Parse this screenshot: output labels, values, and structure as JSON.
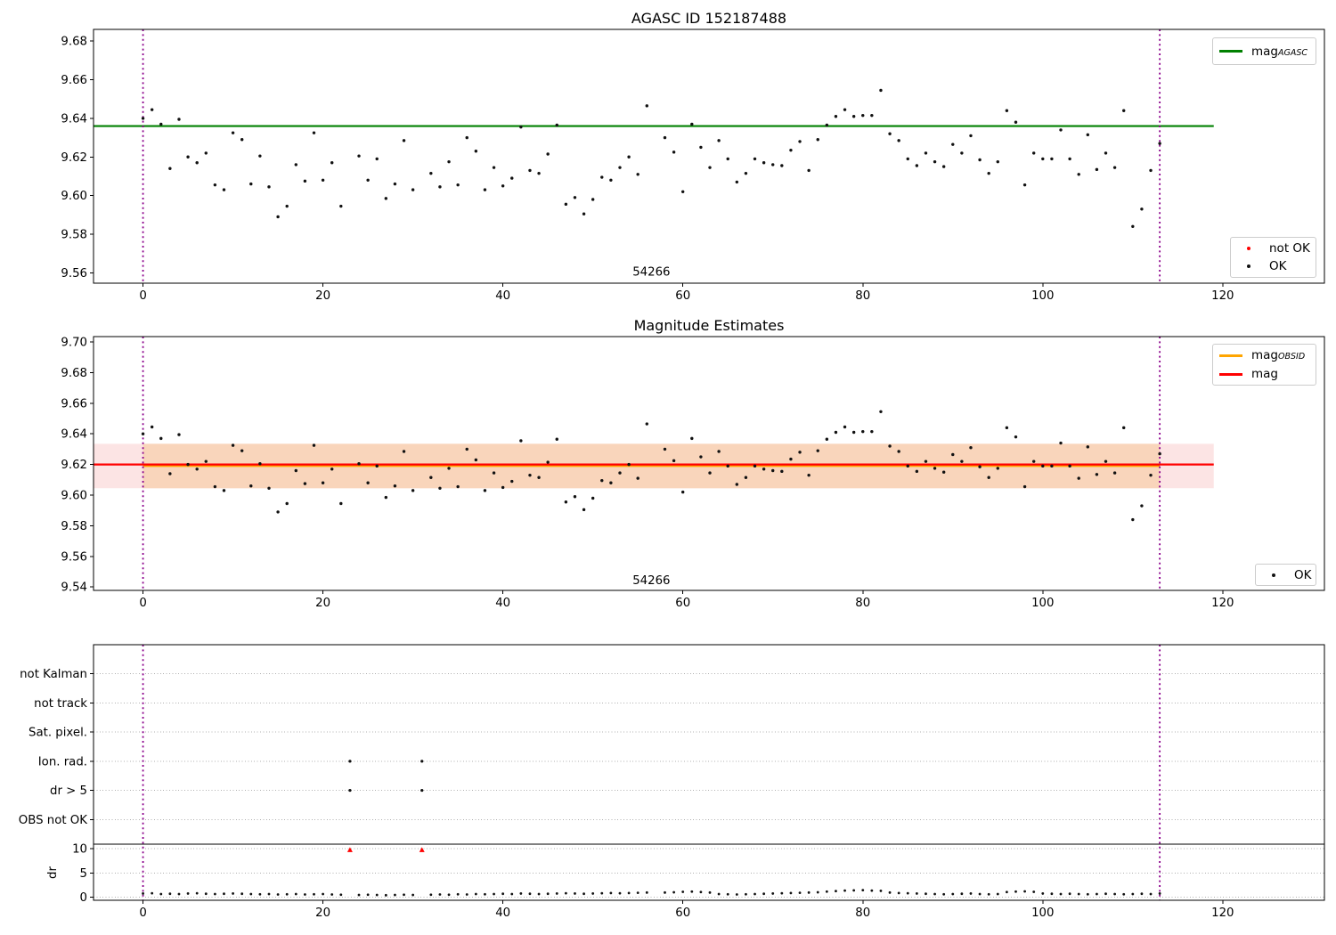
{
  "figure": {
    "title_top": "AGASC ID 152187488",
    "title_mid": "Magnitude Estimates",
    "obsid_label": "54266"
  },
  "colors": {
    "agasc_line": "#008000",
    "mag_line": "#ff0000",
    "obsid_line": "#ffa500",
    "vline": "#8b008b",
    "ok_marker": "#111111",
    "not_ok_marker": "#ff0000",
    "band_obsid": "#f9d5bb",
    "band_full": "#fce4e4",
    "grid": "#b0b0b0"
  },
  "x_axis": {
    "ticks": [
      0,
      20,
      40,
      60,
      80,
      100,
      120
    ],
    "tick_labels": [
      "0",
      "20",
      "40",
      "60",
      "80",
      "100",
      "120"
    ],
    "xlim": [
      -5.5,
      131.3
    ],
    "vlines": [
      0,
      113
    ]
  },
  "observations": {
    "obsid": "54266",
    "x": [
      0,
      1,
      2,
      3,
      4,
      5,
      6,
      7,
      8,
      9,
      10,
      11,
      12,
      13,
      14,
      15,
      16,
      17,
      18,
      19,
      20,
      21,
      22,
      24,
      25,
      26,
      27,
      28,
      29,
      30,
      32,
      33,
      34,
      35,
      36,
      37,
      38,
      39,
      40,
      41,
      42,
      43,
      44,
      45,
      46,
      47,
      48,
      49,
      50,
      51,
      52,
      53,
      54,
      55,
      56,
      58,
      59,
      60,
      61,
      62,
      63,
      64,
      65,
      66,
      67,
      68,
      69,
      70,
      71,
      72,
      73,
      74,
      75,
      76,
      77,
      78,
      79,
      80,
      81,
      82,
      83,
      84,
      85,
      86,
      87,
      88,
      89,
      90,
      91,
      92,
      93,
      94,
      95,
      96,
      97,
      98,
      99,
      100,
      101,
      102,
      103,
      104,
      105,
      106,
      107,
      108,
      109,
      110,
      111,
      112,
      113
    ],
    "mag": [
      9.64,
      9.6445,
      9.637,
      9.614,
      9.6395,
      9.62,
      9.617,
      9.622,
      9.6055,
      9.603,
      9.6325,
      9.629,
      9.606,
      9.6205,
      9.6045,
      9.589,
      9.5945,
      9.616,
      9.6075,
      9.6325,
      9.608,
      9.617,
      9.5945,
      9.6205,
      9.608,
      9.619,
      9.5985,
      9.606,
      9.6285,
      9.603,
      9.6115,
      9.6045,
      9.6175,
      9.6055,
      9.63,
      9.623,
      9.603,
      9.6145,
      9.605,
      9.609,
      9.6355,
      9.613,
      9.6115,
      9.6215,
      9.6365,
      9.5955,
      9.599,
      9.5905,
      9.598,
      9.6095,
      9.608,
      9.6145,
      9.62,
      9.611,
      9.6465,
      9.63,
      9.6225,
      9.602,
      9.637,
      9.625,
      9.6145,
      9.6285,
      9.619,
      9.607,
      9.6115,
      9.619,
      9.617,
      9.616,
      9.6155,
      9.6235,
      9.628,
      9.613,
      9.629,
      9.6365,
      9.641,
      9.6445,
      9.641,
      9.6415,
      9.6415,
      9.6545,
      9.632,
      9.6285,
      9.619,
      9.6155,
      9.622,
      9.6175,
      9.615,
      9.6265,
      9.622,
      9.631,
      9.6185,
      9.6115,
      9.6175,
      9.644,
      9.638,
      9.6055,
      9.622,
      9.619,
      9.619,
      9.634,
      9.619,
      9.611,
      9.6315,
      9.6135,
      9.622,
      9.6145,
      9.644,
      9.584,
      9.593,
      9.613,
      9.627
    ],
    "dr": [
      0.75,
      0.8,
      0.65,
      0.7,
      0.65,
      0.75,
      0.8,
      0.7,
      0.65,
      0.7,
      0.75,
      0.7,
      0.65,
      0.6,
      0.65,
      0.55,
      0.6,
      0.65,
      0.55,
      0.6,
      0.65,
      0.55,
      0.5,
      0.45,
      0.5,
      0.45,
      0.4,
      0.45,
      0.5,
      0.45,
      0.5,
      0.55,
      0.5,
      0.6,
      0.55,
      0.65,
      0.6,
      0.65,
      0.7,
      0.65,
      0.75,
      0.7,
      0.65,
      0.7,
      0.75,
      0.8,
      0.75,
      0.7,
      0.75,
      0.8,
      0.85,
      0.8,
      0.85,
      0.9,
      0.95,
      0.95,
      1.0,
      1.1,
      1.15,
      1.05,
      0.95,
      0.65,
      0.6,
      0.55,
      0.6,
      0.65,
      0.7,
      0.75,
      0.8,
      0.85,
      0.9,
      0.95,
      1.0,
      1.15,
      1.25,
      1.35,
      1.4,
      1.45,
      1.35,
      1.3,
      0.95,
      0.85,
      0.8,
      0.75,
      0.7,
      0.65,
      0.6,
      0.65,
      0.7,
      0.75,
      0.65,
      0.6,
      0.65,
      1.05,
      1.15,
      1.2,
      1.1,
      0.75,
      0.7,
      0.65,
      0.7,
      0.65,
      0.6,
      0.65,
      0.7,
      0.65,
      0.6,
      0.65,
      0.7,
      0.65,
      0.75
    ]
  },
  "flagged": {
    "x": [
      23,
      31
    ],
    "dr": [
      9.7,
      9.7
    ],
    "flags": [
      "Ion. rad.",
      "dr > 5"
    ]
  },
  "chart_data": [
    {
      "type": "scatter",
      "title": "AGASC ID 152187488",
      "ylim": [
        9.5546,
        9.6861
      ],
      "yticks": [
        9.56,
        9.58,
        9.6,
        9.62,
        9.64,
        9.66,
        9.68
      ],
      "ytick_labels": [
        "9.56",
        "9.58",
        "9.60",
        "9.62",
        "9.64",
        "9.66",
        "9.68"
      ],
      "agasc_mag": 9.636,
      "line_x_end": 119,
      "annotation": {
        "label": "54266",
        "x": 56.5,
        "y": 9.5608
      },
      "legends": [
        {
          "loc": "upper right",
          "items": [
            {
              "type": "line",
              "color": "#008000",
              "label": "mag",
              "sub": "AGASC"
            }
          ]
        },
        {
          "loc": "lower right",
          "items": [
            {
              "type": "dot",
              "color": "#ff0000",
              "label": "not OK"
            },
            {
              "type": "dot",
              "color": "#111111",
              "label": "OK"
            }
          ]
        }
      ]
    },
    {
      "type": "scatter",
      "title": "Magnitude Estimates",
      "ylim": [
        9.5378,
        9.7035
      ],
      "yticks": [
        9.54,
        9.56,
        9.58,
        9.6,
        9.62,
        9.64,
        9.66,
        9.68,
        9.7
      ],
      "ytick_labels": [
        "9.54",
        "9.56",
        "9.58",
        "9.60",
        "9.62",
        "9.64",
        "9.66",
        "9.68",
        "9.70"
      ],
      "mag": 9.62,
      "band": [
        9.6045,
        9.6335
      ],
      "obsid_range": [
        0,
        113
      ],
      "line_x_end": 119,
      "annotation": {
        "label": "54266",
        "x": 56.5,
        "y": 9.5448
      },
      "legends": [
        {
          "loc": "upper right",
          "items": [
            {
              "type": "line",
              "color": "#ffa500",
              "label": "mag",
              "sub": "OBSID"
            },
            {
              "type": "line",
              "color": "#ff0000",
              "label": "mag",
              "sub": ""
            }
          ]
        },
        {
          "loc": "lower right",
          "items": [
            {
              "type": "dot",
              "color": "#111111",
              "label": "OK"
            }
          ]
        }
      ]
    },
    {
      "type": "flags",
      "ylim": [
        -0.64,
        52.0
      ],
      "flag_rows": [
        {
          "label": "not Kalman",
          "y": 46
        },
        {
          "label": "not track",
          "y": 40
        },
        {
          "label": "Sat. pixel.",
          "y": 34
        },
        {
          "label": "Ion. rad.",
          "y": 28
        },
        {
          "label": "dr > 5",
          "y": 22
        },
        {
          "label": "OBS not OK",
          "y": 16
        }
      ],
      "dr_ticks": [
        {
          "label": "10",
          "y": 10
        },
        {
          "label": "5",
          "y": 5
        },
        {
          "label": "0",
          "y": 0
        }
      ],
      "ylabel": "dr",
      "separator_y": 10.9,
      "flag_marker_rows": [
        28,
        22
      ]
    }
  ]
}
